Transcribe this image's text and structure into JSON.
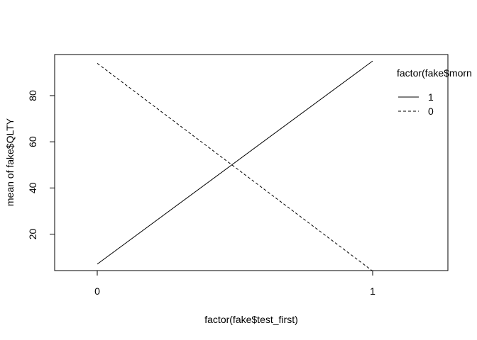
{
  "chart_data": {
    "type": "line",
    "title": "",
    "xlabel": "factor(fake$test_first)",
    "ylabel": "mean of  fake$QLTY",
    "categories": [
      "0",
      "1"
    ],
    "yticks": [
      20,
      40,
      60,
      80
    ],
    "ylim": [
      4.2,
      97.8
    ],
    "grid": false,
    "legend": {
      "title": "factor(fake$morn",
      "position": "top-right",
      "entries": [
        "1",
        "0"
      ]
    },
    "series": [
      {
        "name": "1",
        "line_style": "solid",
        "values": [
          7,
          95
        ]
      },
      {
        "name": "0",
        "line_style": "dashed",
        "values": [
          94,
          4
        ]
      }
    ]
  }
}
